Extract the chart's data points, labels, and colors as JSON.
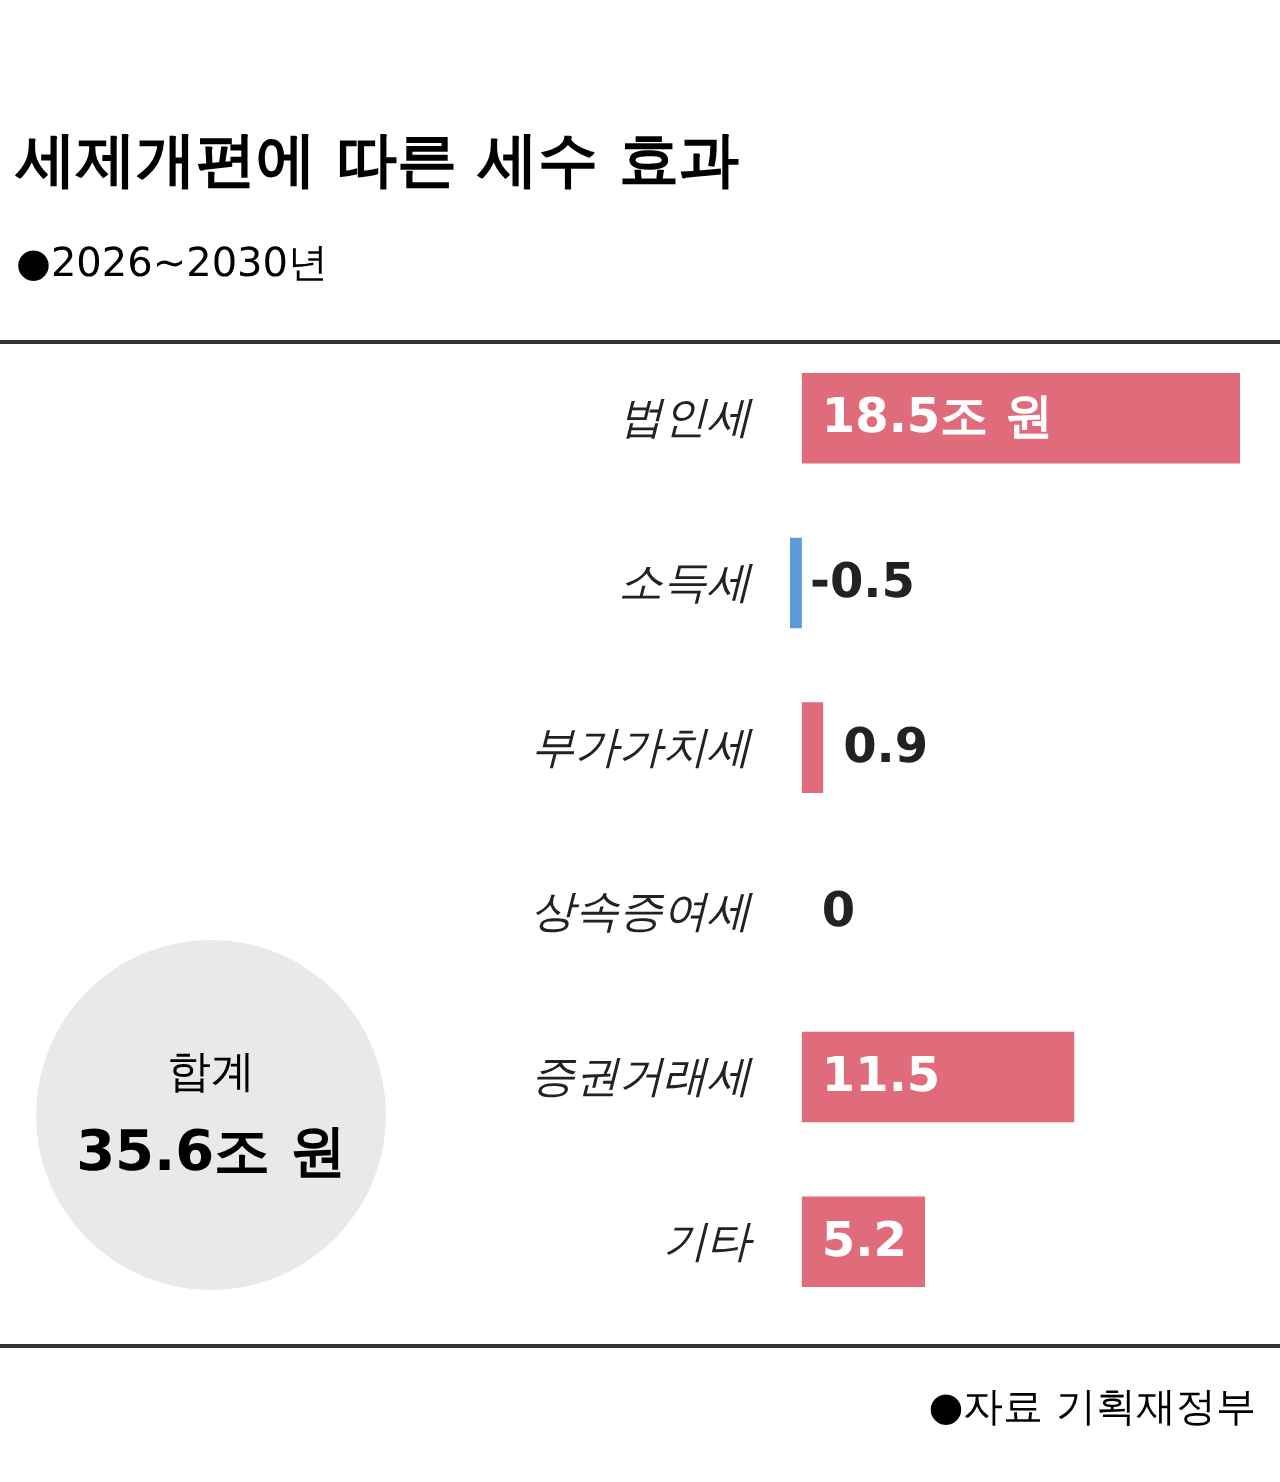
{
  "chart_data": {
    "type": "bar",
    "orientation": "horizontal",
    "title": "세제개편에 따른 세수 효과",
    "subtitle": "●2026~2030년",
    "categories": [
      "법인세",
      "소득세",
      "부가가치세",
      "상속증여세",
      "증권거래세",
      "기타"
    ],
    "values": [
      18.5,
      -0.5,
      0.9,
      0,
      11.5,
      5.2
    ],
    "colors": [
      "#e06c7b",
      "#5b9bd5",
      "#e06c7b",
      "#e06c7b",
      "#e06c7b",
      "#e06c7b"
    ],
    "value_labels": [
      "18.5조 원",
      "-0.5",
      "0.9",
      "0",
      "11.5",
      "5.2"
    ],
    "annotations": [
      "합계",
      "35.6조 원",
      "●자료 기획재정부"
    ]
  }
}
